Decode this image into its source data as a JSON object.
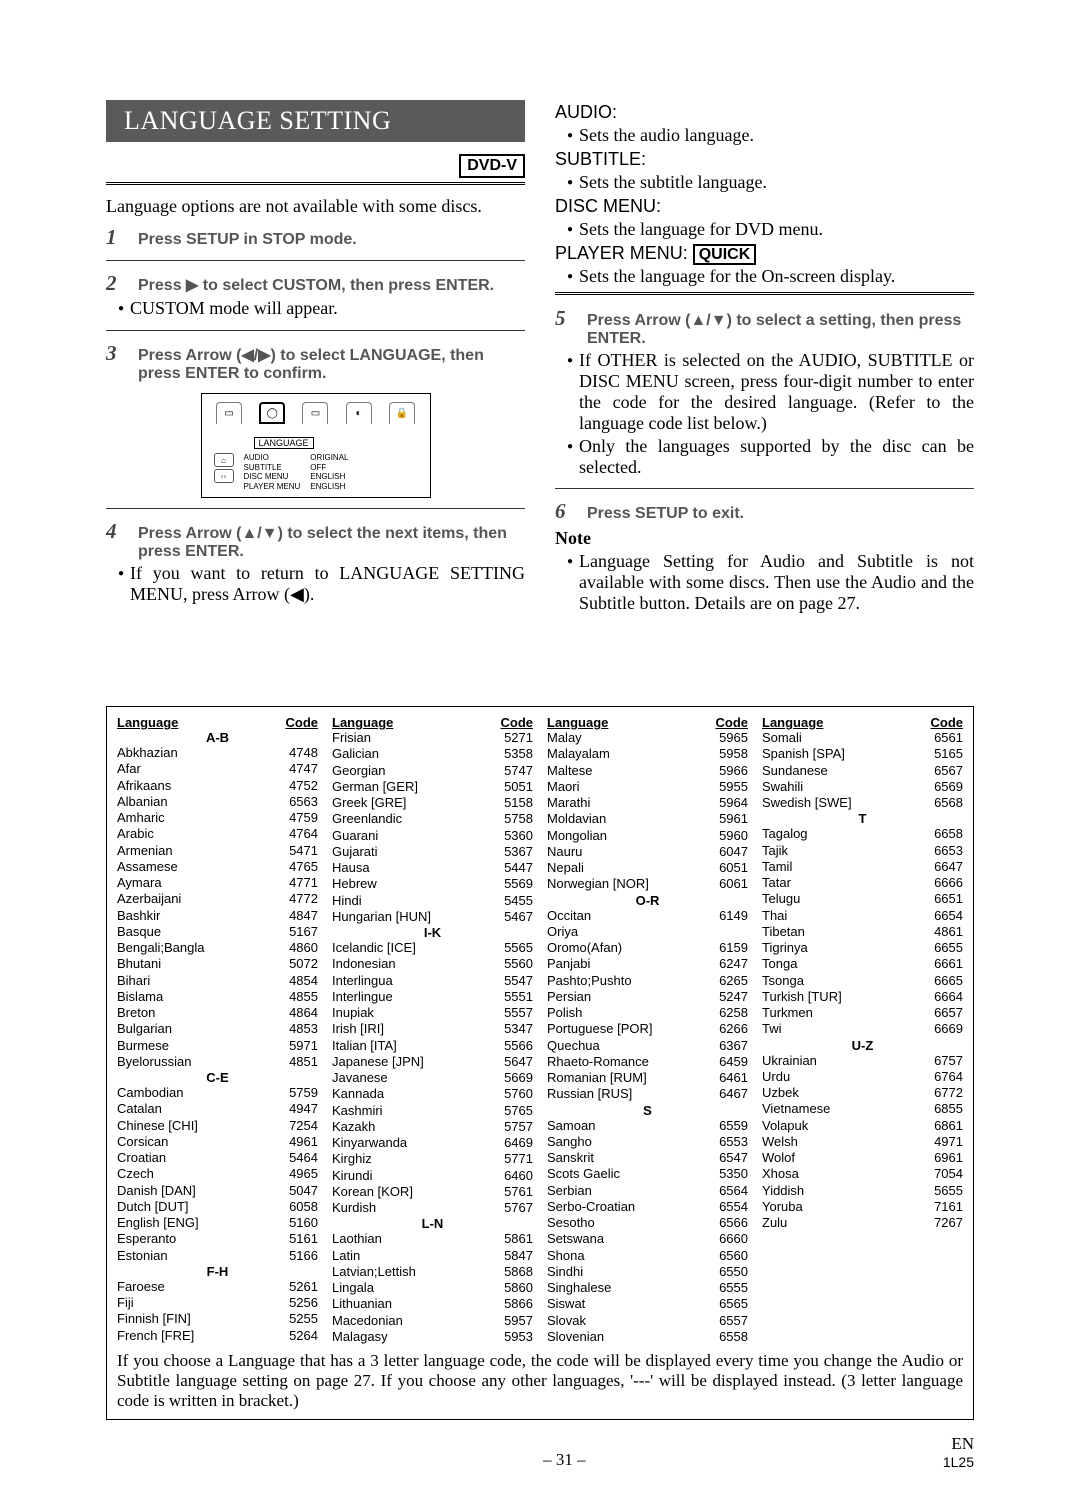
{
  "title": "LANGUAGE SETTING",
  "badge": "DVD-V",
  "intro": "Language options are not available with some discs.",
  "steps_left": {
    "1": "Press SETUP in STOP mode.",
    "2": "Press ▶ to select CUSTOM, then press ENTER.",
    "2b": "CUSTOM mode will appear.",
    "3": "Press Arrow (◀/▶) to select LANGUAGE, then press ENTER to confirm.",
    "4": "Press Arrow (▲/▼) to select the next items, then press ENTER.",
    "4b": "If you want to return to LANGUAGE SETTING MENU, press Arrow (◀)."
  },
  "diagram": {
    "label": "LANGUAGE",
    "left_labels": [
      "AUDIO",
      "SUBTITLE",
      "DISC MENU",
      "PLAYER MENU"
    ],
    "right_labels": [
      "ORIGINAL",
      "OFF",
      "ENGLISH",
      "ENGLISH"
    ]
  },
  "right": {
    "audio_h": "AUDIO:",
    "audio_b": "Sets the audio language.",
    "sub_h": "SUBTITLE:",
    "sub_b": "Sets the subtitle language.",
    "disc_h": "DISC MENU:",
    "disc_b": "Sets the language for DVD menu.",
    "player_h_pre": "PLAYER MENU: ",
    "player_h_box": "QUICK",
    "player_b": "Sets the language for the On-screen display.",
    "5": "Press Arrow (▲/▼) to select a setting, then press ENTER.",
    "5b1": "If OTHER is selected on the AUDIO, SUBTITLE or DISC MENU screen, press four-digit number to enter the code for the desired language. (Refer to the language code list below.)",
    "5b2": "Only the languages supported by the disc can be selected.",
    "6": "Press SETUP to exit.",
    "note_h": "Note",
    "note_b": "Language Setting for Audio and Subtitle is not available with some discs. Then use the Audio and the Subtitle button. Details are on page 27."
  },
  "table_note": "If you choose a Language that has a 3 letter language code, the code will be displayed every time you change the Audio or Subtitle language setting on page 27. If you choose any other languages, '---' will be displayed instead. (3 letter language code is written in bracket.)",
  "page_num": "– 31 –",
  "doc_code": "1L25",
  "en": "EN",
  "hdr_lang": "Language",
  "hdr_code": "Code",
  "cols": [
    [
      {
        "s": "A-B"
      },
      {
        "n": "Abkhazian",
        "c": "4748"
      },
      {
        "n": "Afar",
        "c": "4747"
      },
      {
        "n": "Afrikaans",
        "c": "4752"
      },
      {
        "n": "Albanian",
        "c": "6563"
      },
      {
        "n": "Amharic",
        "c": "4759"
      },
      {
        "n": "Arabic",
        "c": "4764"
      },
      {
        "n": "Armenian",
        "c": "5471"
      },
      {
        "n": "Assamese",
        "c": "4765"
      },
      {
        "n": "Aymara",
        "c": "4771"
      },
      {
        "n": "Azerbaijani",
        "c": "4772"
      },
      {
        "n": "Bashkir",
        "c": "4847"
      },
      {
        "n": "Basque",
        "c": "5167"
      },
      {
        "n": "Bengali;Bangla",
        "c": "4860"
      },
      {
        "n": "Bhutani",
        "c": "5072"
      },
      {
        "n": "Bihari",
        "c": "4854"
      },
      {
        "n": "Bislama",
        "c": "4855"
      },
      {
        "n": "Breton",
        "c": "4864"
      },
      {
        "n": "Bulgarian",
        "c": "4853"
      },
      {
        "n": "Burmese",
        "c": "5971"
      },
      {
        "n": "Byelorussian",
        "c": "4851"
      },
      {
        "s": "C-E"
      },
      {
        "n": "Cambodian",
        "c": "5759"
      },
      {
        "n": "Catalan",
        "c": "4947"
      },
      {
        "n": "Chinese [CHI]",
        "c": "7254"
      },
      {
        "n": "Corsican",
        "c": "4961"
      },
      {
        "n": "Croatian",
        "c": "5464"
      },
      {
        "n": "Czech",
        "c": "4965"
      },
      {
        "n": "Danish [DAN]",
        "c": "5047"
      },
      {
        "n": "Dutch [DUT]",
        "c": "6058"
      },
      {
        "n": "English [ENG]",
        "c": "5160"
      },
      {
        "n": "Esperanto",
        "c": "5161"
      },
      {
        "n": "Estonian",
        "c": "5166"
      },
      {
        "s": "F-H"
      },
      {
        "n": "Faroese",
        "c": "5261"
      },
      {
        "n": "Fiji",
        "c": "5256"
      },
      {
        "n": "Finnish [FIN]",
        "c": "5255"
      },
      {
        "n": "French [FRE]",
        "c": "5264"
      }
    ],
    [
      {
        "n": "Frisian",
        "c": "5271"
      },
      {
        "n": "Galician",
        "c": "5358"
      },
      {
        "n": "Georgian",
        "c": "5747"
      },
      {
        "n": "German [GER]",
        "c": "5051"
      },
      {
        "n": "Greek [GRE]",
        "c": "5158"
      },
      {
        "n": "Greenlandic",
        "c": "5758"
      },
      {
        "n": "Guarani",
        "c": "5360"
      },
      {
        "n": "Gujarati",
        "c": "5367"
      },
      {
        "n": "Hausa",
        "c": "5447"
      },
      {
        "n": "Hebrew",
        "c": "5569"
      },
      {
        "n": "Hindi",
        "c": "5455"
      },
      {
        "n": "Hungarian [HUN]",
        "c": "5467"
      },
      {
        "s": "I-K"
      },
      {
        "n": "Icelandic [ICE]",
        "c": "5565"
      },
      {
        "n": "Indonesian",
        "c": "5560"
      },
      {
        "n": "Interlingua",
        "c": "5547"
      },
      {
        "n": "Interlingue",
        "c": "5551"
      },
      {
        "n": "Inupiak",
        "c": "5557"
      },
      {
        "n": "Irish [IRI]",
        "c": "5347"
      },
      {
        "n": "Italian [ITA]",
        "c": "5566"
      },
      {
        "n": "Japanese [JPN]",
        "c": "5647"
      },
      {
        "n": "Javanese",
        "c": "5669"
      },
      {
        "n": "Kannada",
        "c": "5760"
      },
      {
        "n": "Kashmiri",
        "c": "5765"
      },
      {
        "n": "Kazakh",
        "c": "5757"
      },
      {
        "n": "Kinyarwanda",
        "c": "6469"
      },
      {
        "n": "Kirghiz",
        "c": "5771"
      },
      {
        "n": "Kirundi",
        "c": "6460"
      },
      {
        "n": "Korean [KOR]",
        "c": "5761"
      },
      {
        "n": "Kurdish",
        "c": "5767"
      },
      {
        "s": "L-N"
      },
      {
        "n": "Laothian",
        "c": "5861"
      },
      {
        "n": "Latin",
        "c": "5847"
      },
      {
        "n": "Latvian;Lettish",
        "c": "5868"
      },
      {
        "n": "Lingala",
        "c": "5860"
      },
      {
        "n": "Lithuanian",
        "c": "5866"
      },
      {
        "n": "Macedonian",
        "c": "5957"
      },
      {
        "n": "Malagasy",
        "c": "5953"
      }
    ],
    [
      {
        "n": "Malay",
        "c": "5965"
      },
      {
        "n": "Malayalam",
        "c": "5958"
      },
      {
        "n": "Maltese",
        "c": "5966"
      },
      {
        "n": "Maori",
        "c": "5955"
      },
      {
        "n": "Marathi",
        "c": "5964"
      },
      {
        "n": "Moldavian",
        "c": "5961"
      },
      {
        "n": "Mongolian",
        "c": "5960"
      },
      {
        "n": "Nauru",
        "c": "6047"
      },
      {
        "n": "Nepali",
        "c": "6051"
      },
      {
        "n": "Norwegian [NOR]",
        "c": "6061"
      },
      {
        "s": "O-R"
      },
      {
        "n": "Occitan",
        "c": "6149"
      },
      {
        "n": "Oriya",
        "c": ""
      },
      {
        "n": "Oromo(Afan)",
        "c": "6159"
      },
      {
        "n": "Panjabi",
        "c": "6247"
      },
      {
        "n": "Pashto;Pushto",
        "c": "6265"
      },
      {
        "n": "Persian",
        "c": "5247"
      },
      {
        "n": "Polish",
        "c": "6258"
      },
      {
        "n": "Portuguese [POR]",
        "c": "6266"
      },
      {
        "n": "Quechua",
        "c": "6367"
      },
      {
        "n": "Rhaeto-Romance",
        "c": "6459"
      },
      {
        "n": "Romanian [RUM]",
        "c": "6461"
      },
      {
        "n": "Russian [RUS]",
        "c": "6467"
      },
      {
        "s": "S"
      },
      {
        "n": "Samoan",
        "c": "6559"
      },
      {
        "n": "Sangho",
        "c": "6553"
      },
      {
        "n": "Sanskrit",
        "c": "6547"
      },
      {
        "n": "Scots Gaelic",
        "c": "5350"
      },
      {
        "n": "Serbian",
        "c": "6564"
      },
      {
        "n": "Serbo-Croatian",
        "c": "6554"
      },
      {
        "n": "Sesotho",
        "c": "6566"
      },
      {
        "n": "Setswana",
        "c": "6660"
      },
      {
        "n": "Shona",
        "c": "6560"
      },
      {
        "n": "Sindhi",
        "c": "6550"
      },
      {
        "n": "Singhalese",
        "c": "6555"
      },
      {
        "n": "Siswat",
        "c": "6565"
      },
      {
        "n": "Slovak",
        "c": "6557"
      },
      {
        "n": "Slovenian",
        "c": "6558"
      }
    ],
    [
      {
        "n": "Somali",
        "c": "6561"
      },
      {
        "n": "Spanish [SPA]",
        "c": "5165"
      },
      {
        "n": "Sundanese",
        "c": "6567"
      },
      {
        "n": "Swahili",
        "c": "6569"
      },
      {
        "n": "Swedish [SWE]",
        "c": "6568"
      },
      {
        "s": "T"
      },
      {
        "n": "Tagalog",
        "c": "6658"
      },
      {
        "n": "Tajik",
        "c": "6653"
      },
      {
        "n": "Tamil",
        "c": "6647"
      },
      {
        "n": "Tatar",
        "c": "6666"
      },
      {
        "n": "Telugu",
        "c": "6651"
      },
      {
        "n": "Thai",
        "c": "6654"
      },
      {
        "n": "Tibetan",
        "c": "4861"
      },
      {
        "n": "Tigrinya",
        "c": "6655"
      },
      {
        "n": "Tonga",
        "c": "6661"
      },
      {
        "n": "Tsonga",
        "c": "6665"
      },
      {
        "n": "Turkish [TUR]",
        "c": "6664"
      },
      {
        "n": "Turkmen",
        "c": "6657"
      },
      {
        "n": "Twi",
        "c": "6669"
      },
      {
        "s": "U-Z"
      },
      {
        "n": "Ukrainian",
        "c": "6757"
      },
      {
        "n": "Urdu",
        "c": "6764"
      },
      {
        "n": "Uzbek",
        "c": "6772"
      },
      {
        "n": "Vietnamese",
        "c": "6855"
      },
      {
        "n": "Volapuk",
        "c": "6861"
      },
      {
        "n": "Welsh",
        "c": "4971"
      },
      {
        "n": "Wolof",
        "c": "6961"
      },
      {
        "n": "Xhosa",
        "c": "7054"
      },
      {
        "n": "Yiddish",
        "c": "5655"
      },
      {
        "n": "Yoruba",
        "c": "7161"
      },
      {
        "n": "Zulu",
        "c": "7267"
      }
    ]
  ]
}
